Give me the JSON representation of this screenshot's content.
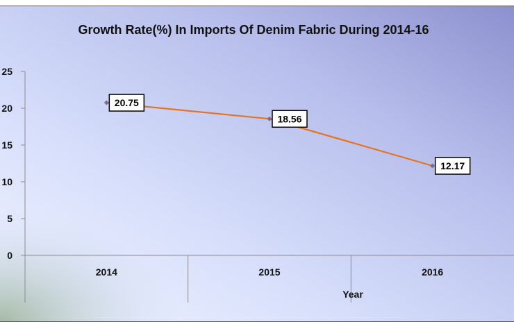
{
  "chart_data": {
    "type": "line",
    "title": "Growth Rate(%) In Imports Of Denim Fabric During 2014-16",
    "xlabel": "Year",
    "ylabel": "",
    "categories": [
      "2014",
      "2015",
      "2016"
    ],
    "series": [
      {
        "values": [
          20.75,
          18.56,
          12.17
        ],
        "data_labels": [
          "20.75",
          "18.56",
          "12.17"
        ]
      }
    ],
    "y_ticks": [
      "0",
      "5",
      "10",
      "15",
      "20",
      "25"
    ],
    "ylim": [
      0,
      25
    ],
    "grid": false,
    "legend": "none",
    "colors": {
      "line": "#E8731E",
      "marker": "#7B6E8C",
      "axis": "#8C8C8C",
      "label_border": "#000000"
    }
  }
}
